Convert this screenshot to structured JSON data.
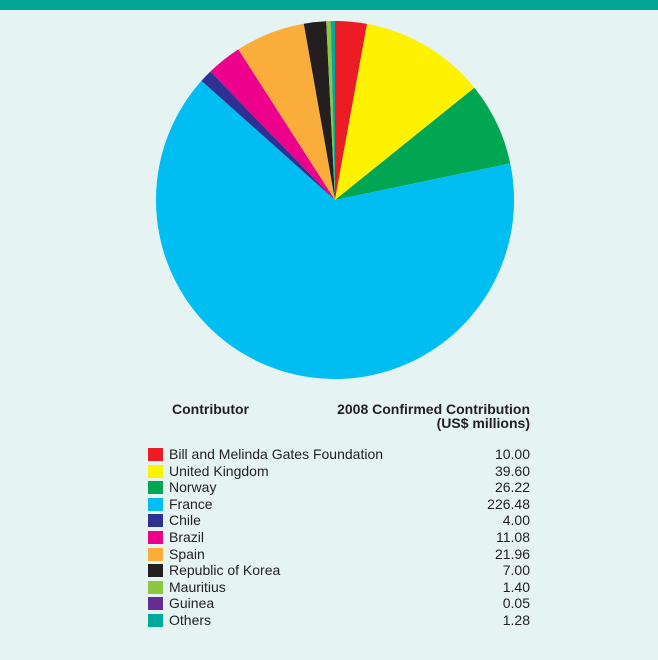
{
  "chart_data": {
    "type": "pie",
    "title": "",
    "columns": {
      "contributor": "Contributor",
      "contribution_line1": "2008 Confirmed Contribution",
      "contribution_line2": "(US$ millions)"
    },
    "slices": [
      {
        "label": "Bill and Melinda Gates Foundation",
        "value": 10.0,
        "display": "10.00",
        "color": "#ed1c24"
      },
      {
        "label": "United Kingdom",
        "value": 39.6,
        "display": "39.60",
        "color": "#fff200"
      },
      {
        "label": "Norway",
        "value": 26.22,
        "display": "26.22",
        "color": "#00a651"
      },
      {
        "label": "France",
        "value": 226.48,
        "display": "226.48",
        "color": "#00bdf2"
      },
      {
        "label": "Chile",
        "value": 4.0,
        "display": "4.00",
        "color": "#2e3192"
      },
      {
        "label": "Brazil",
        "value": 11.08,
        "display": "11.08",
        "color": "#ec008c"
      },
      {
        "label": "Spain",
        "value": 21.96,
        "display": "21.96",
        "color": "#fbad3b"
      },
      {
        "label": "Republic of Korea",
        "value": 7.0,
        "display": "7.00",
        "color": "#231f20"
      },
      {
        "label": "Mauritius",
        "value": 1.4,
        "display": "1.40",
        "color": "#8dc63f"
      },
      {
        "label": "Guinea",
        "value": 0.05,
        "display": "0.05",
        "color": "#662d91"
      },
      {
        "label": "Others",
        "value": 1.28,
        "display": "1.28",
        "color": "#00a99d"
      }
    ]
  }
}
